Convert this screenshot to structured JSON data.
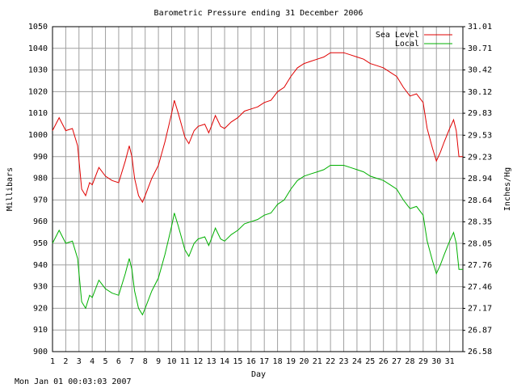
{
  "chart_data": {
    "type": "line",
    "title": "Barometric Pressure ending 31 December 2006",
    "x_label": "Day",
    "y_label": "Millibars",
    "y2_label": "Inches/Hg",
    "footer": "Mon Jan 01 00:03:03 2007",
    "xlim": [
      1,
      32
    ],
    "xticks": [
      1,
      2,
      3,
      4,
      5,
      6,
      7,
      8,
      9,
      10,
      11,
      12,
      13,
      14,
      15,
      16,
      17,
      18,
      19,
      20,
      21,
      22,
      23,
      24,
      25,
      26,
      27,
      28,
      29,
      30,
      31
    ],
    "ylim": [
      900,
      1050
    ],
    "yticks": [
      900,
      910,
      920,
      930,
      940,
      950,
      960,
      970,
      980,
      990,
      1000,
      1010,
      1020,
      1030,
      1040,
      1050
    ],
    "y2lim": [
      26.58,
      31.01
    ],
    "y2ticks": [
      26.58,
      26.87,
      27.17,
      27.46,
      27.76,
      28.05,
      28.35,
      28.64,
      28.94,
      29.23,
      29.53,
      29.83,
      30.12,
      30.42,
      30.71,
      31.01
    ],
    "grid": true,
    "legend": "upper right",
    "x": [
      1,
      1.5,
      2,
      2.5,
      2.9,
      3.2,
      3.5,
      3.8,
      4,
      4.5,
      5,
      5.5,
      6,
      6.5,
      6.8,
      7,
      7.2,
      7.5,
      7.8,
      8,
      8.5,
      9,
      9.5,
      10,
      10.2,
      10.5,
      11,
      11.3,
      11.7,
      12,
      12.5,
      12.8,
      13,
      13.3,
      13.7,
      14,
      14.5,
      15,
      15.5,
      16,
      16.5,
      17,
      17.5,
      18,
      18.5,
      19,
      19.5,
      20,
      20.5,
      21,
      21.5,
      22,
      22.5,
      23,
      23.5,
      24,
      24.5,
      25,
      25.5,
      26,
      26.5,
      27,
      27.5,
      28,
      28.5,
      29,
      29.3,
      29.7,
      30,
      30.3,
      30.6,
      31,
      31.3,
      31.5,
      31.7,
      32
    ],
    "series": [
      {
        "name": "Sea Level",
        "color": "#e00000",
        "values": [
          1002,
          1008,
          1002,
          1003,
          995,
          975,
          972,
          978,
          977,
          985,
          981,
          979,
          978,
          988,
          995,
          990,
          980,
          972,
          969,
          972,
          980,
          986,
          997,
          1010,
          1016,
          1010,
          999,
          996,
          1002,
          1004,
          1005,
          1001,
          1004,
          1009,
          1004,
          1003,
          1006,
          1008,
          1011,
          1012,
          1013,
          1015,
          1016,
          1020,
          1022,
          1027,
          1031,
          1033,
          1034,
          1035,
          1036,
          1038,
          1038,
          1038,
          1037,
          1036,
          1035,
          1033,
          1032,
          1031,
          1029,
          1027,
          1022,
          1018,
          1019,
          1015,
          1003,
          994,
          988,
          992,
          997,
          1003,
          1007,
          1002,
          990,
          990
        ]
      },
      {
        "name": "Local",
        "color": "#00b000",
        "values": [
          950,
          956,
          950,
          951,
          943,
          923,
          920,
          926,
          925,
          933,
          929,
          927,
          926,
          936,
          943,
          938,
          928,
          920,
          917,
          920,
          928,
          934,
          945,
          958,
          964,
          958,
          947,
          944,
          950,
          952,
          953,
          949,
          952,
          957,
          952,
          951,
          954,
          956,
          959,
          960,
          961,
          963,
          964,
          968,
          970,
          975,
          979,
          981,
          982,
          983,
          984,
          986,
          986,
          986,
          985,
          984,
          983,
          981,
          980,
          979,
          977,
          975,
          970,
          966,
          967,
          963,
          951,
          942,
          936,
          940,
          945,
          951,
          955,
          950,
          938,
          938
        ]
      }
    ]
  }
}
